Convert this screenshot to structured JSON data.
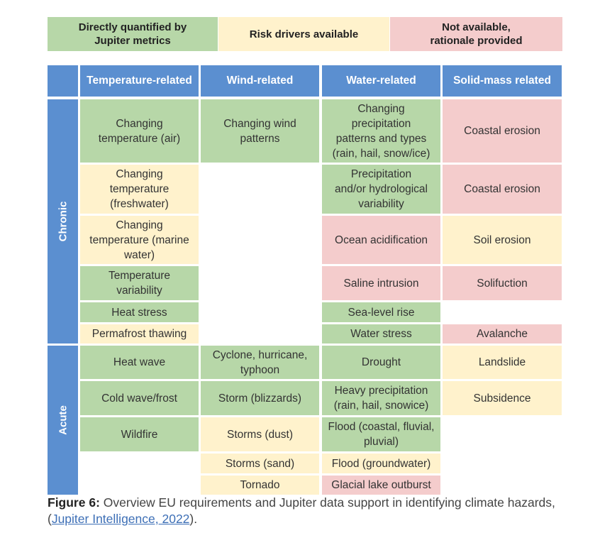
{
  "legend": [
    {
      "label": "Directly quantified by\nJupiter metrics",
      "color": "#b7d7a8"
    },
    {
      "label": "Risk drivers available",
      "color": "#fff2cc"
    },
    {
      "label": "Not available,\nrationale provided",
      "color": "#f4cccc"
    }
  ],
  "headers": [
    "Temperature-related",
    "Wind-related",
    "Water-related",
    "Solid-mass related"
  ],
  "row_groups": [
    "Chronic",
    "Acute"
  ],
  "cells": {
    "temp_chronic": [
      "Changing\ntemperature (air)",
      "Changing\ntemperature\n(freshwater)",
      "Changing\ntemperature (marine\nwater)",
      "Temperature\nvariability",
      "Heat stress",
      "Permafrost thawing"
    ],
    "wind_chronic": [
      "Changing wind\npatterns"
    ],
    "water_chronic": [
      "Changing\nprecipitation\npatterns and types\n(rain, hail, snow/ice)",
      "Precipitation\nand/or hydrological\nvariability",
      "Ocean acidification",
      "Saline intrusion",
      "Sea-level rise",
      "Water stress"
    ],
    "solid_chronic": [
      "Coastal erosion",
      "Coastal erosion",
      "Soil erosion",
      "Solifuction",
      "Avalanche"
    ],
    "temp_acute": [
      "Heat wave",
      "Cold wave/frost",
      "Wildfire"
    ],
    "wind_acute": [
      "Cyclone, hurricane,\ntyphoon",
      "Storm (blizzards)",
      "Storms (dust)",
      "Storms (sand)",
      "Tornado"
    ],
    "water_acute": [
      "Drought",
      "Heavy precipitation\n(rain, hail, snowice)",
      "Flood (coastal, fluvial,\npluvial)",
      "Flood (groundwater)",
      "Glacial lake outburst"
    ],
    "solid_acute": [
      "Landslide",
      "Subsidence"
    ]
  },
  "caption": {
    "figure": "Figure 6:",
    "text": " Overview EU requirements and Jupiter data support in identifying climate hazards, (",
    "citation": "Jupiter Intelligence, 2022",
    "end": ")."
  }
}
